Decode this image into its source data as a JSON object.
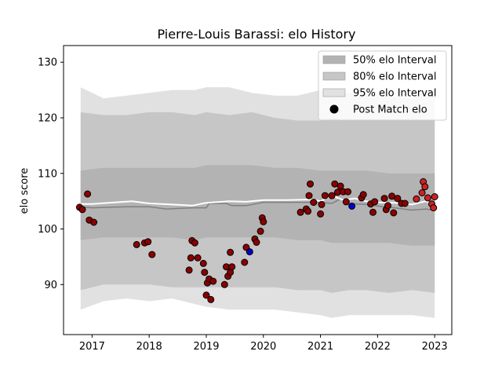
{
  "chart_data": {
    "type": "scatter",
    "title": "Pierre-Louis Barassi: elo History",
    "xlabel": "",
    "ylabel": "elo score",
    "xlim": [
      2016.5,
      2023.3
    ],
    "ylim": [
      81,
      133
    ],
    "x_ticks": [
      2017,
      2018,
      2019,
      2020,
      2021,
      2022,
      2023
    ],
    "y_ticks": [
      90,
      100,
      110,
      120,
      130
    ],
    "grid": false,
    "legend_position": "top-right",
    "legend": [
      {
        "label": "50% elo Interval",
        "color": "#b3b3b3",
        "kind": "patch"
      },
      {
        "label": "80% elo Interval",
        "color": "#c6c6c6",
        "kind": "patch"
      },
      {
        "label": "95% elo Interval",
        "color": "#e1e1e1",
        "kind": "patch"
      },
      {
        "label": "Post Match elo",
        "color": "#000000",
        "kind": "marker"
      }
    ],
    "bands": {
      "x": [
        2016.8,
        2017.2,
        2017.6,
        2018.0,
        2018.4,
        2018.8,
        2019.0,
        2019.4,
        2019.8,
        2020.2,
        2020.6,
        2021.0,
        2021.2,
        2021.5,
        2021.8,
        2022.2,
        2022.6,
        2023.0
      ],
      "p95_upper": [
        125.5,
        123.5,
        124.0,
        124.5,
        125.0,
        125.0,
        125.5,
        125.5,
        124.5,
        124.0,
        124.0,
        125.0,
        124.0,
        124.5,
        124.5,
        124.0,
        123.5,
        125.0
      ],
      "p95_lower": [
        85.5,
        87.0,
        87.5,
        87.0,
        87.5,
        86.5,
        86.0,
        85.5,
        85.5,
        85.5,
        85.0,
        84.5,
        84.0,
        84.5,
        84.5,
        84.5,
        84.5,
        84.0
      ],
      "p80_upper": [
        121.0,
        120.5,
        120.5,
        121.0,
        121.0,
        120.5,
        121.0,
        120.5,
        121.0,
        120.0,
        119.5,
        119.5,
        120.0,
        119.5,
        119.5,
        119.5,
        119.5,
        119.5
      ],
      "p80_lower": [
        89.0,
        90.0,
        90.0,
        90.0,
        89.5,
        89.5,
        89.5,
        89.5,
        89.5,
        89.5,
        89.0,
        89.0,
        88.5,
        89.0,
        89.0,
        88.5,
        89.0,
        88.5
      ],
      "p50_upper": [
        110.5,
        111.0,
        111.0,
        111.0,
        111.0,
        111.0,
        111.5,
        111.5,
        111.5,
        111.0,
        111.0,
        110.5,
        110.5,
        110.5,
        110.5,
        110.0,
        110.0,
        110.0
      ],
      "p50_lower": [
        98.0,
        98.5,
        98.5,
        98.5,
        98.5,
        98.0,
        98.5,
        98.5,
        98.5,
        98.5,
        98.0,
        98.0,
        97.5,
        97.5,
        97.5,
        97.5,
        97.0,
        97.0
      ]
    },
    "series": [
      {
        "color": "#808080",
        "x": [
          2016.8,
          2017.0,
          2017.6,
          2018.0,
          2018.3,
          2018.75,
          2019.0,
          2019.05,
          2019.35,
          2019.45,
          2019.7,
          2020.0,
          2020.5,
          2020.85,
          2021.0,
          2021.2,
          2021.35,
          2021.5,
          2021.8,
          2022.1,
          2022.3,
          2022.6,
          2022.85,
          2023.0
        ],
        "values": [
          104.0,
          103.8,
          104.0,
          104.0,
          103.6,
          103.8,
          103.8,
          104.6,
          104.6,
          104.2,
          104.2,
          104.8,
          104.8,
          104.8,
          104.8,
          104.6,
          105.4,
          104.6,
          104.4,
          104.0,
          103.8,
          103.4,
          103.6,
          103.3
        ]
      },
      {
        "color": "#ffffff",
        "x": [
          2016.8,
          2017.0,
          2017.7,
          2018.0,
          2018.4,
          2018.75,
          2019.0,
          2019.4,
          2019.7,
          2020.0,
          2020.4,
          2020.85,
          2021.0,
          2021.2,
          2021.4,
          2021.6,
          2021.8,
          2022.0,
          2022.3,
          2022.6,
          2022.85,
          2023.0
        ],
        "values": [
          104.5,
          104.5,
          105.0,
          104.6,
          104.4,
          104.2,
          104.7,
          105.0,
          104.9,
          105.2,
          105.2,
          105.3,
          105.0,
          106.0,
          105.2,
          105.5,
          105.0,
          104.8,
          104.7,
          104.4,
          105.0,
          104.2
        ]
      }
    ],
    "points": [
      {
        "x": 2016.78,
        "y": 103.9,
        "color": "#8b0000"
      },
      {
        "x": 2016.83,
        "y": 103.5,
        "color": "#8b0000"
      },
      {
        "x": 2016.92,
        "y": 106.3,
        "color": "#8b0000"
      },
      {
        "x": 2016.95,
        "y": 101.6,
        "color": "#8b0000"
      },
      {
        "x": 2017.03,
        "y": 101.2,
        "color": "#8b0000"
      },
      {
        "x": 2017.78,
        "y": 97.2,
        "color": "#8b0000"
      },
      {
        "x": 2017.92,
        "y": 97.5,
        "color": "#8b0000"
      },
      {
        "x": 2017.98,
        "y": 97.7,
        "color": "#8b0000"
      },
      {
        "x": 2018.05,
        "y": 95.4,
        "color": "#8b0000"
      },
      {
        "x": 2018.7,
        "y": 92.6,
        "color": "#8b0000"
      },
      {
        "x": 2018.73,
        "y": 94.8,
        "color": "#8b0000"
      },
      {
        "x": 2018.75,
        "y": 97.9,
        "color": "#8b0000"
      },
      {
        "x": 2018.8,
        "y": 97.5,
        "color": "#8b0000"
      },
      {
        "x": 2018.85,
        "y": 94.8,
        "color": "#8b0000"
      },
      {
        "x": 2018.95,
        "y": 93.8,
        "color": "#8b0000"
      },
      {
        "x": 2018.97,
        "y": 92.2,
        "color": "#8b0000"
      },
      {
        "x": 2019.0,
        "y": 88.1,
        "color": "#8b0000"
      },
      {
        "x": 2019.02,
        "y": 90.3,
        "color": "#8b0000"
      },
      {
        "x": 2019.05,
        "y": 91.0,
        "color": "#8b0000"
      },
      {
        "x": 2019.08,
        "y": 87.3,
        "color": "#8b0000"
      },
      {
        "x": 2019.12,
        "y": 90.6,
        "color": "#8b0000"
      },
      {
        "x": 2019.32,
        "y": 90.0,
        "color": "#8b0000"
      },
      {
        "x": 2019.35,
        "y": 93.2,
        "color": "#8b0000"
      },
      {
        "x": 2019.38,
        "y": 91.5,
        "color": "#8b0000"
      },
      {
        "x": 2019.42,
        "y": 92.2,
        "color": "#8b0000"
      },
      {
        "x": 2019.42,
        "y": 95.8,
        "color": "#8b0000"
      },
      {
        "x": 2019.45,
        "y": 93.2,
        "color": "#8b0000"
      },
      {
        "x": 2019.67,
        "y": 94.0,
        "color": "#8b0000"
      },
      {
        "x": 2019.7,
        "y": 96.7,
        "color": "#8b0000"
      },
      {
        "x": 2019.76,
        "y": 95.9,
        "color": "#0000cc"
      },
      {
        "x": 2019.85,
        "y": 98.2,
        "color": "#8b0000"
      },
      {
        "x": 2019.88,
        "y": 97.6,
        "color": "#8b0000"
      },
      {
        "x": 2019.95,
        "y": 99.6,
        "color": "#8b0000"
      },
      {
        "x": 2019.98,
        "y": 102.0,
        "color": "#8b0000"
      },
      {
        "x": 2020.0,
        "y": 101.3,
        "color": "#8b0000"
      },
      {
        "x": 2020.65,
        "y": 103.0,
        "color": "#8b0000"
      },
      {
        "x": 2020.75,
        "y": 103.6,
        "color": "#8b0000"
      },
      {
        "x": 2020.78,
        "y": 103.2,
        "color": "#8b0000"
      },
      {
        "x": 2020.8,
        "y": 106.0,
        "color": "#8b0000"
      },
      {
        "x": 2020.82,
        "y": 108.1,
        "color": "#8b0000"
      },
      {
        "x": 2020.88,
        "y": 104.8,
        "color": "#8b0000"
      },
      {
        "x": 2021.0,
        "y": 102.7,
        "color": "#8b0000"
      },
      {
        "x": 2021.02,
        "y": 104.4,
        "color": "#8b0000"
      },
      {
        "x": 2021.08,
        "y": 106.0,
        "color": "#8b0000"
      },
      {
        "x": 2021.2,
        "y": 106.0,
        "color": "#8b0000"
      },
      {
        "x": 2021.25,
        "y": 108.1,
        "color": "#8b0000"
      },
      {
        "x": 2021.3,
        "y": 106.6,
        "color": "#8b0000"
      },
      {
        "x": 2021.35,
        "y": 107.7,
        "color": "#8b0000"
      },
      {
        "x": 2021.4,
        "y": 106.7,
        "color": "#8b0000"
      },
      {
        "x": 2021.45,
        "y": 104.9,
        "color": "#8b0000"
      },
      {
        "x": 2021.48,
        "y": 106.7,
        "color": "#8b0000"
      },
      {
        "x": 2021.55,
        "y": 104.1,
        "color": "#0000cc"
      },
      {
        "x": 2021.72,
        "y": 105.6,
        "color": "#8b0000"
      },
      {
        "x": 2021.75,
        "y": 106.2,
        "color": "#8b0000"
      },
      {
        "x": 2021.88,
        "y": 104.5,
        "color": "#8b0000"
      },
      {
        "x": 2021.92,
        "y": 103.0,
        "color": "#8b0000"
      },
      {
        "x": 2021.95,
        "y": 104.9,
        "color": "#8b0000"
      },
      {
        "x": 2022.12,
        "y": 105.5,
        "color": "#8b0000"
      },
      {
        "x": 2022.15,
        "y": 103.5,
        "color": "#8b0000"
      },
      {
        "x": 2022.18,
        "y": 104.2,
        "color": "#8b0000"
      },
      {
        "x": 2022.25,
        "y": 105.9,
        "color": "#8b0000"
      },
      {
        "x": 2022.28,
        "y": 102.9,
        "color": "#8b0000"
      },
      {
        "x": 2022.35,
        "y": 105.5,
        "color": "#8b0000"
      },
      {
        "x": 2022.42,
        "y": 104.6,
        "color": "#8b0000"
      },
      {
        "x": 2022.48,
        "y": 104.6,
        "color": "#8b0000"
      },
      {
        "x": 2022.68,
        "y": 105.4,
        "color": "#cc2222"
      },
      {
        "x": 2022.78,
        "y": 106.5,
        "color": "#cc2222"
      },
      {
        "x": 2022.8,
        "y": 108.5,
        "color": "#cc2222"
      },
      {
        "x": 2022.83,
        "y": 107.6,
        "color": "#cc2222"
      },
      {
        "x": 2022.88,
        "y": 105.6,
        "color": "#cc2222"
      },
      {
        "x": 2022.95,
        "y": 104.5,
        "color": "#cc2222"
      },
      {
        "x": 2022.98,
        "y": 103.8,
        "color": "#cc2222"
      },
      {
        "x": 2023.0,
        "y": 105.8,
        "color": "#cc2222"
      }
    ]
  }
}
